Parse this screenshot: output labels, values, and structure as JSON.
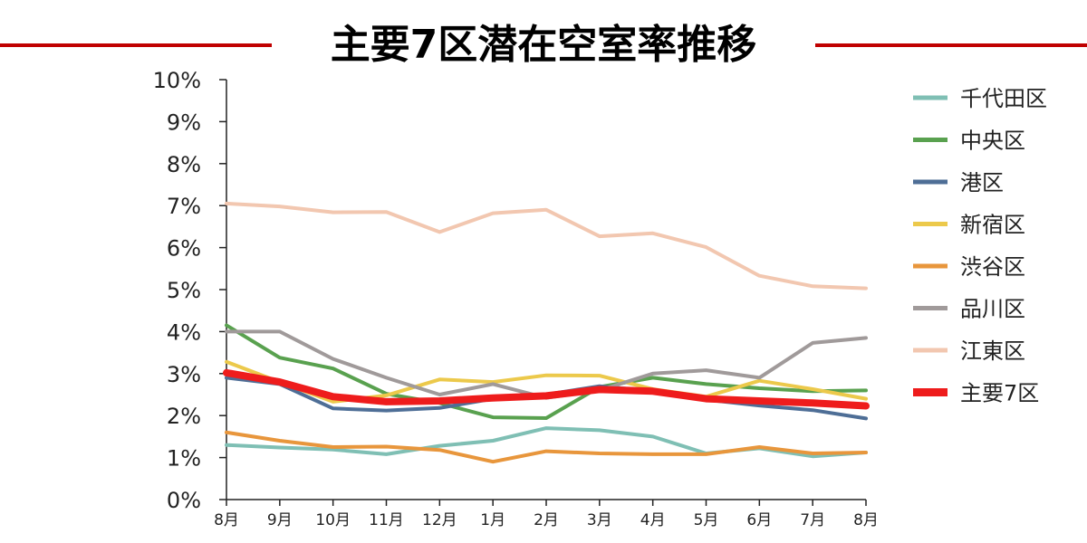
{
  "chart_data": {
    "type": "line",
    "title": "主要7区潜在空室率推移",
    "categories": [
      "8月",
      "9月",
      "10月",
      "11月",
      "12月",
      "1月",
      "2月",
      "3月",
      "4月",
      "5月",
      "6月",
      "7月",
      "8月"
    ],
    "y_ticks": [
      "0%",
      "1%",
      "2%",
      "3%",
      "4%",
      "5%",
      "6%",
      "7%",
      "8%",
      "9%",
      "10%"
    ],
    "ylim": [
      0,
      10
    ],
    "grid": false,
    "legend_position": "right",
    "series": [
      {
        "name": "千代田区",
        "color": "#7fbfb4",
        "width": 4,
        "values": [
          1.3,
          1.24,
          1.19,
          1.08,
          1.28,
          1.4,
          1.7,
          1.65,
          1.5,
          1.1,
          1.22,
          1.03,
          1.12
        ]
      },
      {
        "name": "中央区",
        "color": "#59a14f",
        "width": 4,
        "values": [
          4.15,
          3.38,
          3.12,
          2.52,
          2.3,
          1.96,
          1.94,
          2.68,
          2.9,
          2.75,
          2.65,
          2.58,
          2.6
        ]
      },
      {
        "name": "港区",
        "color": "#4e6e96",
        "width": 4,
        "values": [
          2.9,
          2.75,
          2.17,
          2.12,
          2.18,
          2.4,
          2.5,
          2.7,
          2.58,
          2.38,
          2.24,
          2.13,
          1.93
        ]
      },
      {
        "name": "新宿区",
        "color": "#ecc94b",
        "width": 4,
        "values": [
          3.28,
          2.8,
          2.33,
          2.48,
          2.86,
          2.8,
          2.96,
          2.95,
          2.63,
          2.45,
          2.83,
          2.63,
          2.4
        ]
      },
      {
        "name": "渋谷区",
        "color": "#e8963c",
        "width": 4,
        "values": [
          1.6,
          1.4,
          1.25,
          1.26,
          1.18,
          0.9,
          1.15,
          1.1,
          1.08,
          1.08,
          1.25,
          1.1,
          1.12
        ]
      },
      {
        "name": "品川区",
        "color": "#a09a9a",
        "width": 4,
        "values": [
          4.0,
          4.0,
          3.35,
          2.9,
          2.5,
          2.75,
          2.42,
          2.6,
          3.0,
          3.08,
          2.9,
          3.73,
          3.85
        ]
      },
      {
        "name": "江東区",
        "color": "#f2c7b0",
        "width": 4,
        "values": [
          7.05,
          6.98,
          6.84,
          6.85,
          6.37,
          6.82,
          6.9,
          6.27,
          6.34,
          6.01,
          5.33,
          5.08,
          5.03
        ]
      },
      {
        "name": "主要7区",
        "color": "#ee1c1c",
        "width": 8,
        "values": [
          3.02,
          2.8,
          2.45,
          2.33,
          2.35,
          2.42,
          2.47,
          2.62,
          2.58,
          2.4,
          2.35,
          2.3,
          2.23
        ]
      }
    ]
  }
}
